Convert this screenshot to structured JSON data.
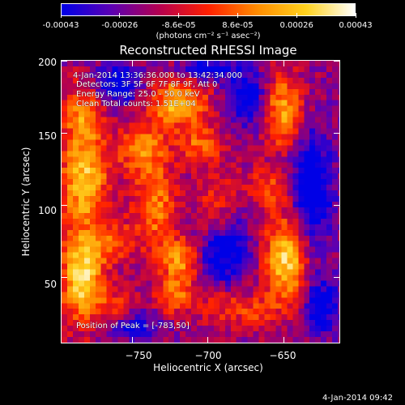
{
  "colorbar": {
    "tick_labels": [
      "-0.00043",
      "-0.00026",
      "-8.6e-05",
      "8.6e-05",
      "0.00026",
      "0.00043"
    ],
    "units": "(photons cm⁻² s⁻¹ asec⁻²)",
    "colors": [
      "#0000e6",
      "#5a00b4",
      "#b40050",
      "#ff2000",
      "#ff8c00",
      "#ffd21e",
      "#ffffff"
    ]
  },
  "plot": {
    "title": "Reconstructed RHESSI Image",
    "time_range": "4-Jan-2014 13:36:36.000 to 13:42:34.000",
    "detectors": "Detectors: 3F 5F 6F 7F 8F 9F, Att 0",
    "energy_range": "Energy Range: 25.0 - 50.0 keV",
    "method": "Clean     Total counts: 1.51E+04",
    "peak": "Position of Peak = [-783,50]"
  },
  "chart_data": {
    "type": "heatmap",
    "title": "Reconstructed RHESSI Image",
    "xlabel": "Heliocentric X (arcsec)",
    "ylabel": "Heliocentric Y (arcsec)",
    "xlim": [
      -797,
      -613
    ],
    "ylim": [
      4,
      201
    ],
    "x_ticks": [
      -750,
      -700,
      -650
    ],
    "y_ticks": [
      50,
      100,
      150,
      200
    ],
    "x_tick_labels": [
      "−750",
      "−700",
      "−650"
    ],
    "y_tick_labels": [
      "50",
      "100",
      "150",
      "200"
    ],
    "colorbar_range": [
      -0.00043,
      0.00043
    ],
    "peak_position": [
      -783,
      50
    ],
    "sources": [
      {
        "x": -783,
        "y": 50,
        "sx": 10,
        "sy": 22,
        "amp": 1.0
      },
      {
        "x": -782,
        "y": 118,
        "sx": 11,
        "sy": 22,
        "amp": 0.85
      },
      {
        "x": -783,
        "y": 165,
        "sx": 9,
        "sy": 16,
        "amp": 0.6
      },
      {
        "x": -745,
        "y": 140,
        "sx": 12,
        "sy": 12,
        "amp": 0.55
      },
      {
        "x": -720,
        "y": 172,
        "sx": 14,
        "sy": 12,
        "amp": 0.8
      },
      {
        "x": -705,
        "y": 142,
        "sx": 10,
        "sy": 9,
        "amp": 0.5
      },
      {
        "x": -735,
        "y": 100,
        "sx": 10,
        "sy": 22,
        "amp": 0.6
      },
      {
        "x": -718,
        "y": 60,
        "sx": 9,
        "sy": 12,
        "amp": 0.65
      },
      {
        "x": -722,
        "y": 35,
        "sx": 9,
        "sy": 9,
        "amp": 0.45
      },
      {
        "x": -695,
        "y": 95,
        "sx": 10,
        "sy": 18,
        "amp": 0.45
      },
      {
        "x": -690,
        "y": 30,
        "sx": 12,
        "sy": 10,
        "amp": 0.35
      },
      {
        "x": -650,
        "y": 165,
        "sx": 9,
        "sy": 18,
        "amp": 0.75
      },
      {
        "x": -648,
        "y": 62,
        "sx": 10,
        "sy": 22,
        "amp": 0.95
      },
      {
        "x": -660,
        "y": 112,
        "sx": 12,
        "sy": 10,
        "amp": 0.4
      },
      {
        "x": -762,
        "y": 75,
        "sx": 10,
        "sy": 10,
        "amp": 0.4
      },
      {
        "x": -668,
        "y": 25,
        "sx": 10,
        "sy": 8,
        "amp": 0.3
      },
      {
        "x": -760,
        "y": 30,
        "sx": 9,
        "sy": 8,
        "amp": 0.3
      }
    ],
    "negative_regions": [
      {
        "x": -690,
        "y": 70,
        "sx": 12,
        "sy": 18,
        "amp": 0.7
      },
      {
        "x": -632,
        "y": 110,
        "sx": 10,
        "sy": 30,
        "amp": 0.7
      },
      {
        "x": -760,
        "y": 185,
        "sx": 12,
        "sy": 10,
        "amp": 0.6
      },
      {
        "x": -675,
        "y": 175,
        "sx": 10,
        "sy": 14,
        "amp": 0.55
      },
      {
        "x": -625,
        "y": 30,
        "sx": 9,
        "sy": 14,
        "amp": 0.55
      },
      {
        "x": -700,
        "y": 195,
        "sx": 14,
        "sy": 6,
        "amp": 0.5
      },
      {
        "x": -748,
        "y": 15,
        "sx": 12,
        "sy": 7,
        "amp": 0.45
      }
    ]
  },
  "footer": {
    "date": "4-Jan-2014 09:42"
  }
}
